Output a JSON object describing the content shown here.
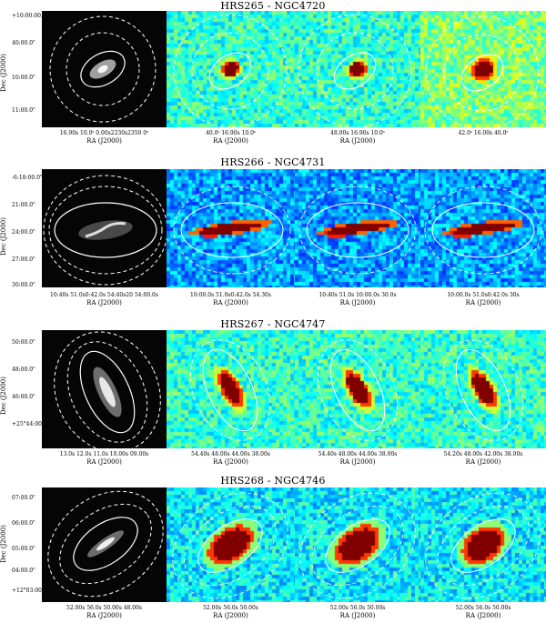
{
  "figure": {
    "panels": [
      {
        "title": "HRS265 - NGC4720",
        "ylabel": "Dec (J2000)",
        "yticks": [
          "+10:00:00.0\"",
          "40:00.0\"",
          "10:00.0\"",
          "11:00.0\""
        ],
        "xticks": [
          "16.90s  10.0ˢ  0.00s2230s2350 0ˢ",
          "40.0ˢ  16.90s  10.0ˢ",
          "48.00s  16.90s  10.0ˢ",
          "42.0ˢ  16.00s  40.0ˢ"
        ],
        "xlabel": "RA (J2000)"
      },
      {
        "title": "HRS266 - NGC4731",
        "ylabel": "Dec (J2000)",
        "yticks": [
          "-6:18:00.0\"",
          "21:00.0\"",
          "24:00.0\"",
          "27:00.0\"",
          "30:00.0\""
        ],
        "xticks": [
          "10:40s  51.0s0:42.0s  54:40s20  54:00.0s",
          "10:00.0s  51.0s0:42.0s  54.30s",
          "10:40s  51.0s  10:00.0s  30.0s",
          "10:00.0s  51.0s0:42.0s  30s"
        ],
        "xlabel": "RA (J2000)"
      },
      {
        "title": "HRS267 - NGC4747",
        "ylabel": "Dec (J2000)",
        "yticks": [
          "50:00.0\"",
          "48:00.0\"",
          "46:00.0\"",
          "+25°44:00.0\""
        ],
        "xticks": [
          "13.0s  12.0s  11.0s  10.00s  09.00s",
          "54.40s  48.00s  44.00s  38.00s",
          "54.40s  48.00s  44.00s  38.00s",
          "54.20s  48.00s  42.00s  38.00s"
        ],
        "xlabel": "RA (J2000)"
      },
      {
        "title": "HRS268 - NGC4746",
        "ylabel": "Dec (J2000)",
        "yticks": [
          "07:00.0\"",
          "06:00.0\"",
          "05:00.0\"",
          "04:00.0\"",
          "+12°03:00.0\""
        ],
        "xticks": [
          "52.00s  56.0s  50.00s  48.00s",
          "52.00s  56.0s  50.00s",
          "52.00s  56.0s  50.00s",
          "52.00s  56.0s  50.00s"
        ],
        "xlabel": "RA (J2000)"
      }
    ]
  }
}
